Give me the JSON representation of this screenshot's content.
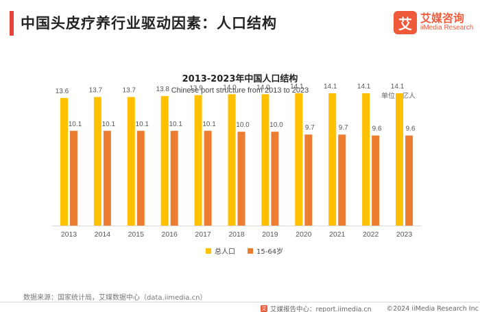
{
  "header": {
    "title": "中国头皮疗养行业驱动因素：人口结构"
  },
  "logo": {
    "mark": "艾",
    "name_cn": "艾媒咨询",
    "name_en": "iiMedia Research"
  },
  "colors": {
    "accent": "#e8423a",
    "brand": "#ef5a3a",
    "series_total": "#ffc000",
    "series_working": "#ed7d31",
    "axis": "#d9d9d9"
  },
  "chart_data": {
    "type": "bar",
    "title": "2013-2023年中国人口结构",
    "subtitle": "Chinese port structure from 2013 to 2023",
    "unit": "单位：亿人",
    "categories": [
      "2013",
      "2014",
      "2015",
      "2016",
      "2017",
      "2018",
      "2019",
      "2020",
      "2021",
      "2022",
      "2023"
    ],
    "series": [
      {
        "name": "总人口",
        "values": [
          13.6,
          13.7,
          13.7,
          13.8,
          13.9,
          14.0,
          14.0,
          14.1,
          14.1,
          14.1,
          14.1
        ]
      },
      {
        "name": "15-64岁",
        "values": [
          10.1,
          10.1,
          10.1,
          10.1,
          10.1,
          10.0,
          10.0,
          9.7,
          9.7,
          9.6,
          9.6
        ]
      }
    ],
    "ylim": [
      0,
      16
    ],
    "grid": false,
    "legend": "bottom-center"
  },
  "footer": {
    "source": "数据来源：国家统计局，艾媒数据中心（data.iimedia.cn）",
    "report_center": "艾媒报告中心：report.iimedia.cn",
    "copyright": "©2024  iiMedia Research Inc",
    "logo_mark": "艾"
  }
}
